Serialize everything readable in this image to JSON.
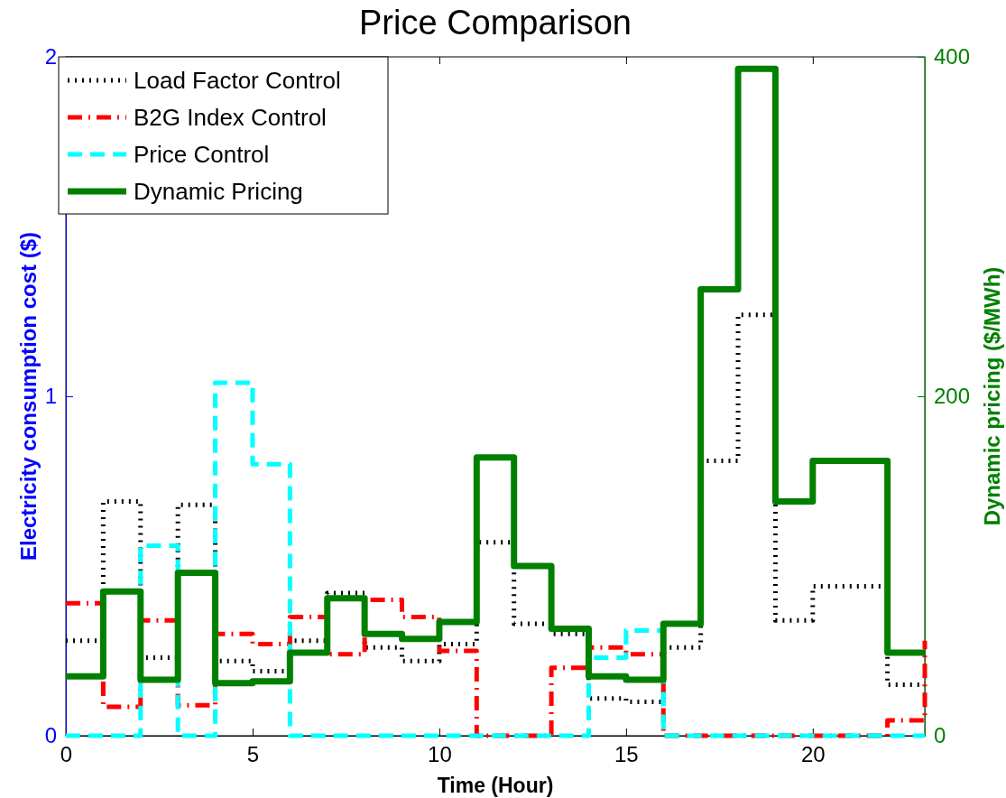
{
  "chart_data": {
    "type": "step",
    "title": "Price Comparison",
    "xlabel": "Time (Hour)",
    "ylabel": "Electricity consumption cost ($)",
    "y2label": "Dynamic pricing ($/MWh)",
    "x": [
      0,
      1,
      2,
      3,
      4,
      5,
      6,
      7,
      8,
      9,
      10,
      11,
      12,
      13,
      14,
      15,
      16,
      17,
      18,
      19,
      20,
      21,
      22,
      23
    ],
    "xlim": [
      0,
      23
    ],
    "xticks": [
      0,
      5,
      10,
      15,
      20
    ],
    "ylim": [
      0,
      2
    ],
    "yticks": [
      0,
      1,
      2
    ],
    "y2lim": [
      0,
      400
    ],
    "y2ticks": [
      0,
      200,
      400
    ],
    "legend": "top left",
    "grid": false,
    "series": [
      {
        "name": "Load Factor Control",
        "color": "#000000",
        "line_style": "dotted",
        "values": [
          0.28,
          0.69,
          0.23,
          0.68,
          0.22,
          0.19,
          0.28,
          0.42,
          0.26,
          0.22,
          0.27,
          0.57,
          0.33,
          0.3,
          0.11,
          0.1,
          0.26,
          0.81,
          1.24,
          0.34,
          0.44,
          0.44,
          0.15,
          0.15
        ]
      },
      {
        "name": "B2G Index Control",
        "color": "#ff0000",
        "line_style": "dashdot",
        "values": [
          0.39,
          0.085,
          0.34,
          0.09,
          0.3,
          0.27,
          0.35,
          0.24,
          0.4,
          0.35,
          0.25,
          0,
          0,
          0.2,
          0.26,
          0.24,
          0,
          0,
          0,
          0,
          0,
          0,
          0.045,
          0.28
        ]
      },
      {
        "name": "Price Control",
        "color": "#00ffff",
        "line_style": "dashed",
        "values": [
          0,
          0,
          0.56,
          0,
          1.04,
          0.8,
          0,
          0,
          0,
          0,
          0,
          0,
          0,
          0,
          0.23,
          0.31,
          0,
          0,
          0,
          0,
          0,
          0,
          0,
          0
        ]
      },
      {
        "name": "Dynamic Pricing",
        "color": "#008000",
        "line_style": "solid",
        "axis": "y2",
        "values": [
          35,
          85,
          33,
          96,
          31,
          32,
          49,
          81,
          60,
          57,
          67,
          164,
          100,
          63,
          35,
          33,
          66,
          263,
          393,
          138,
          162,
          162,
          49,
          49
        ]
      }
    ]
  }
}
